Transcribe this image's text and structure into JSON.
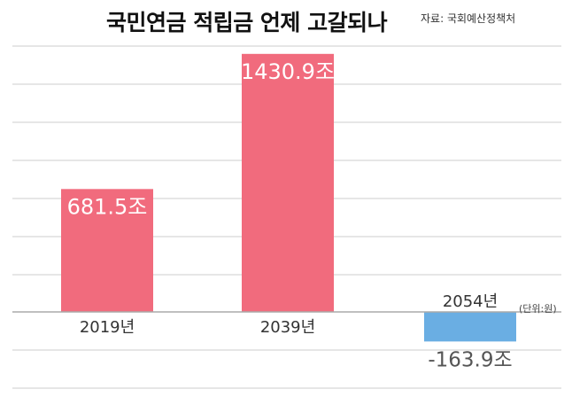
{
  "chart_data": {
    "type": "bar",
    "title": "국민연금 적립금 언제 고갈되나",
    "source": "자료: 국회예산정책처",
    "unit_note": "(단위:원)",
    "categories": [
      "2019년",
      "2039년",
      "2054년"
    ],
    "values": [
      681.5,
      1430.9,
      -163.9
    ],
    "data_labels": [
      "681.5조",
      "1430.9조",
      "-163.9조"
    ],
    "ylim": [
      -200,
      1500
    ],
    "grid": true,
    "legend": "none",
    "colors": {
      "positive": "#f16b7d",
      "negative": "#6aaee3",
      "grid": "#cccccc",
      "baseline": "#aaaaaa",
      "positive_label": "#ffffff",
      "negative_label": "#555555",
      "category_label": "#333333"
    }
  }
}
